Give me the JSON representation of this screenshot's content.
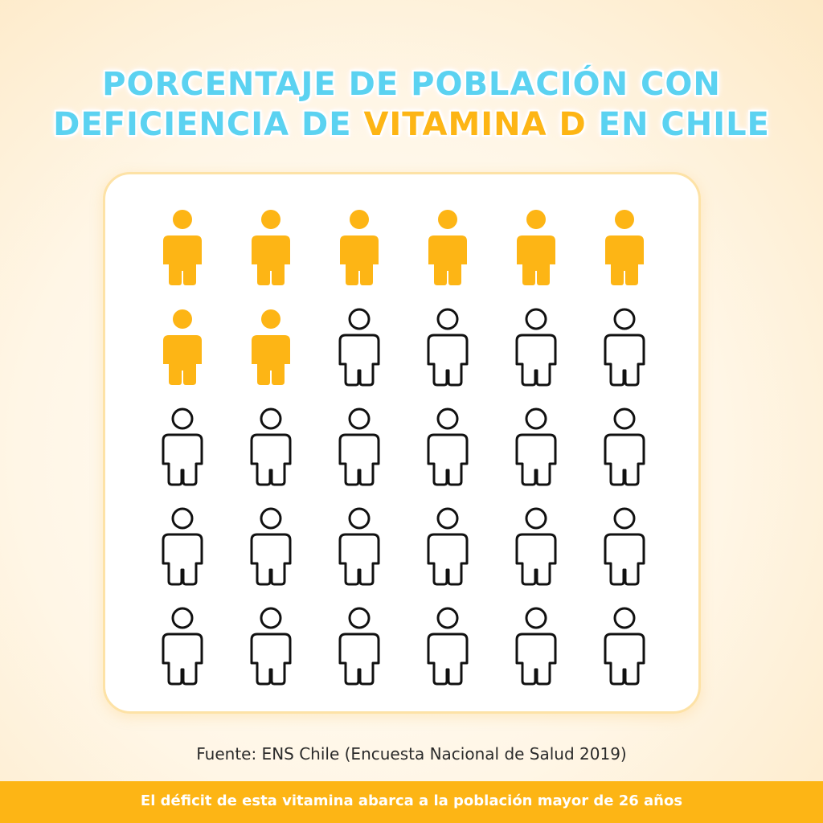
{
  "title": {
    "line1": "PORCENTAJE DE POBLACIÓN CON",
    "line2_part1": "DEFICIENCIA DE ",
    "line2_highlight": "VITAMINA D",
    "line2_part2": " EN CHILE"
  },
  "chart_data": {
    "type": "pictogram",
    "total": 30,
    "highlighted": 8,
    "rows": 5,
    "columns": 6,
    "highlight_color": "#fdb515",
    "outline_color": "#111111"
  },
  "source": "Fuente: ENS Chile (Encuesta Nacional de Salud 2019)",
  "footer": {
    "text": "El déficit de esta vitamina abarca a la población mayor de 26 años",
    "color": "#fdb515"
  }
}
